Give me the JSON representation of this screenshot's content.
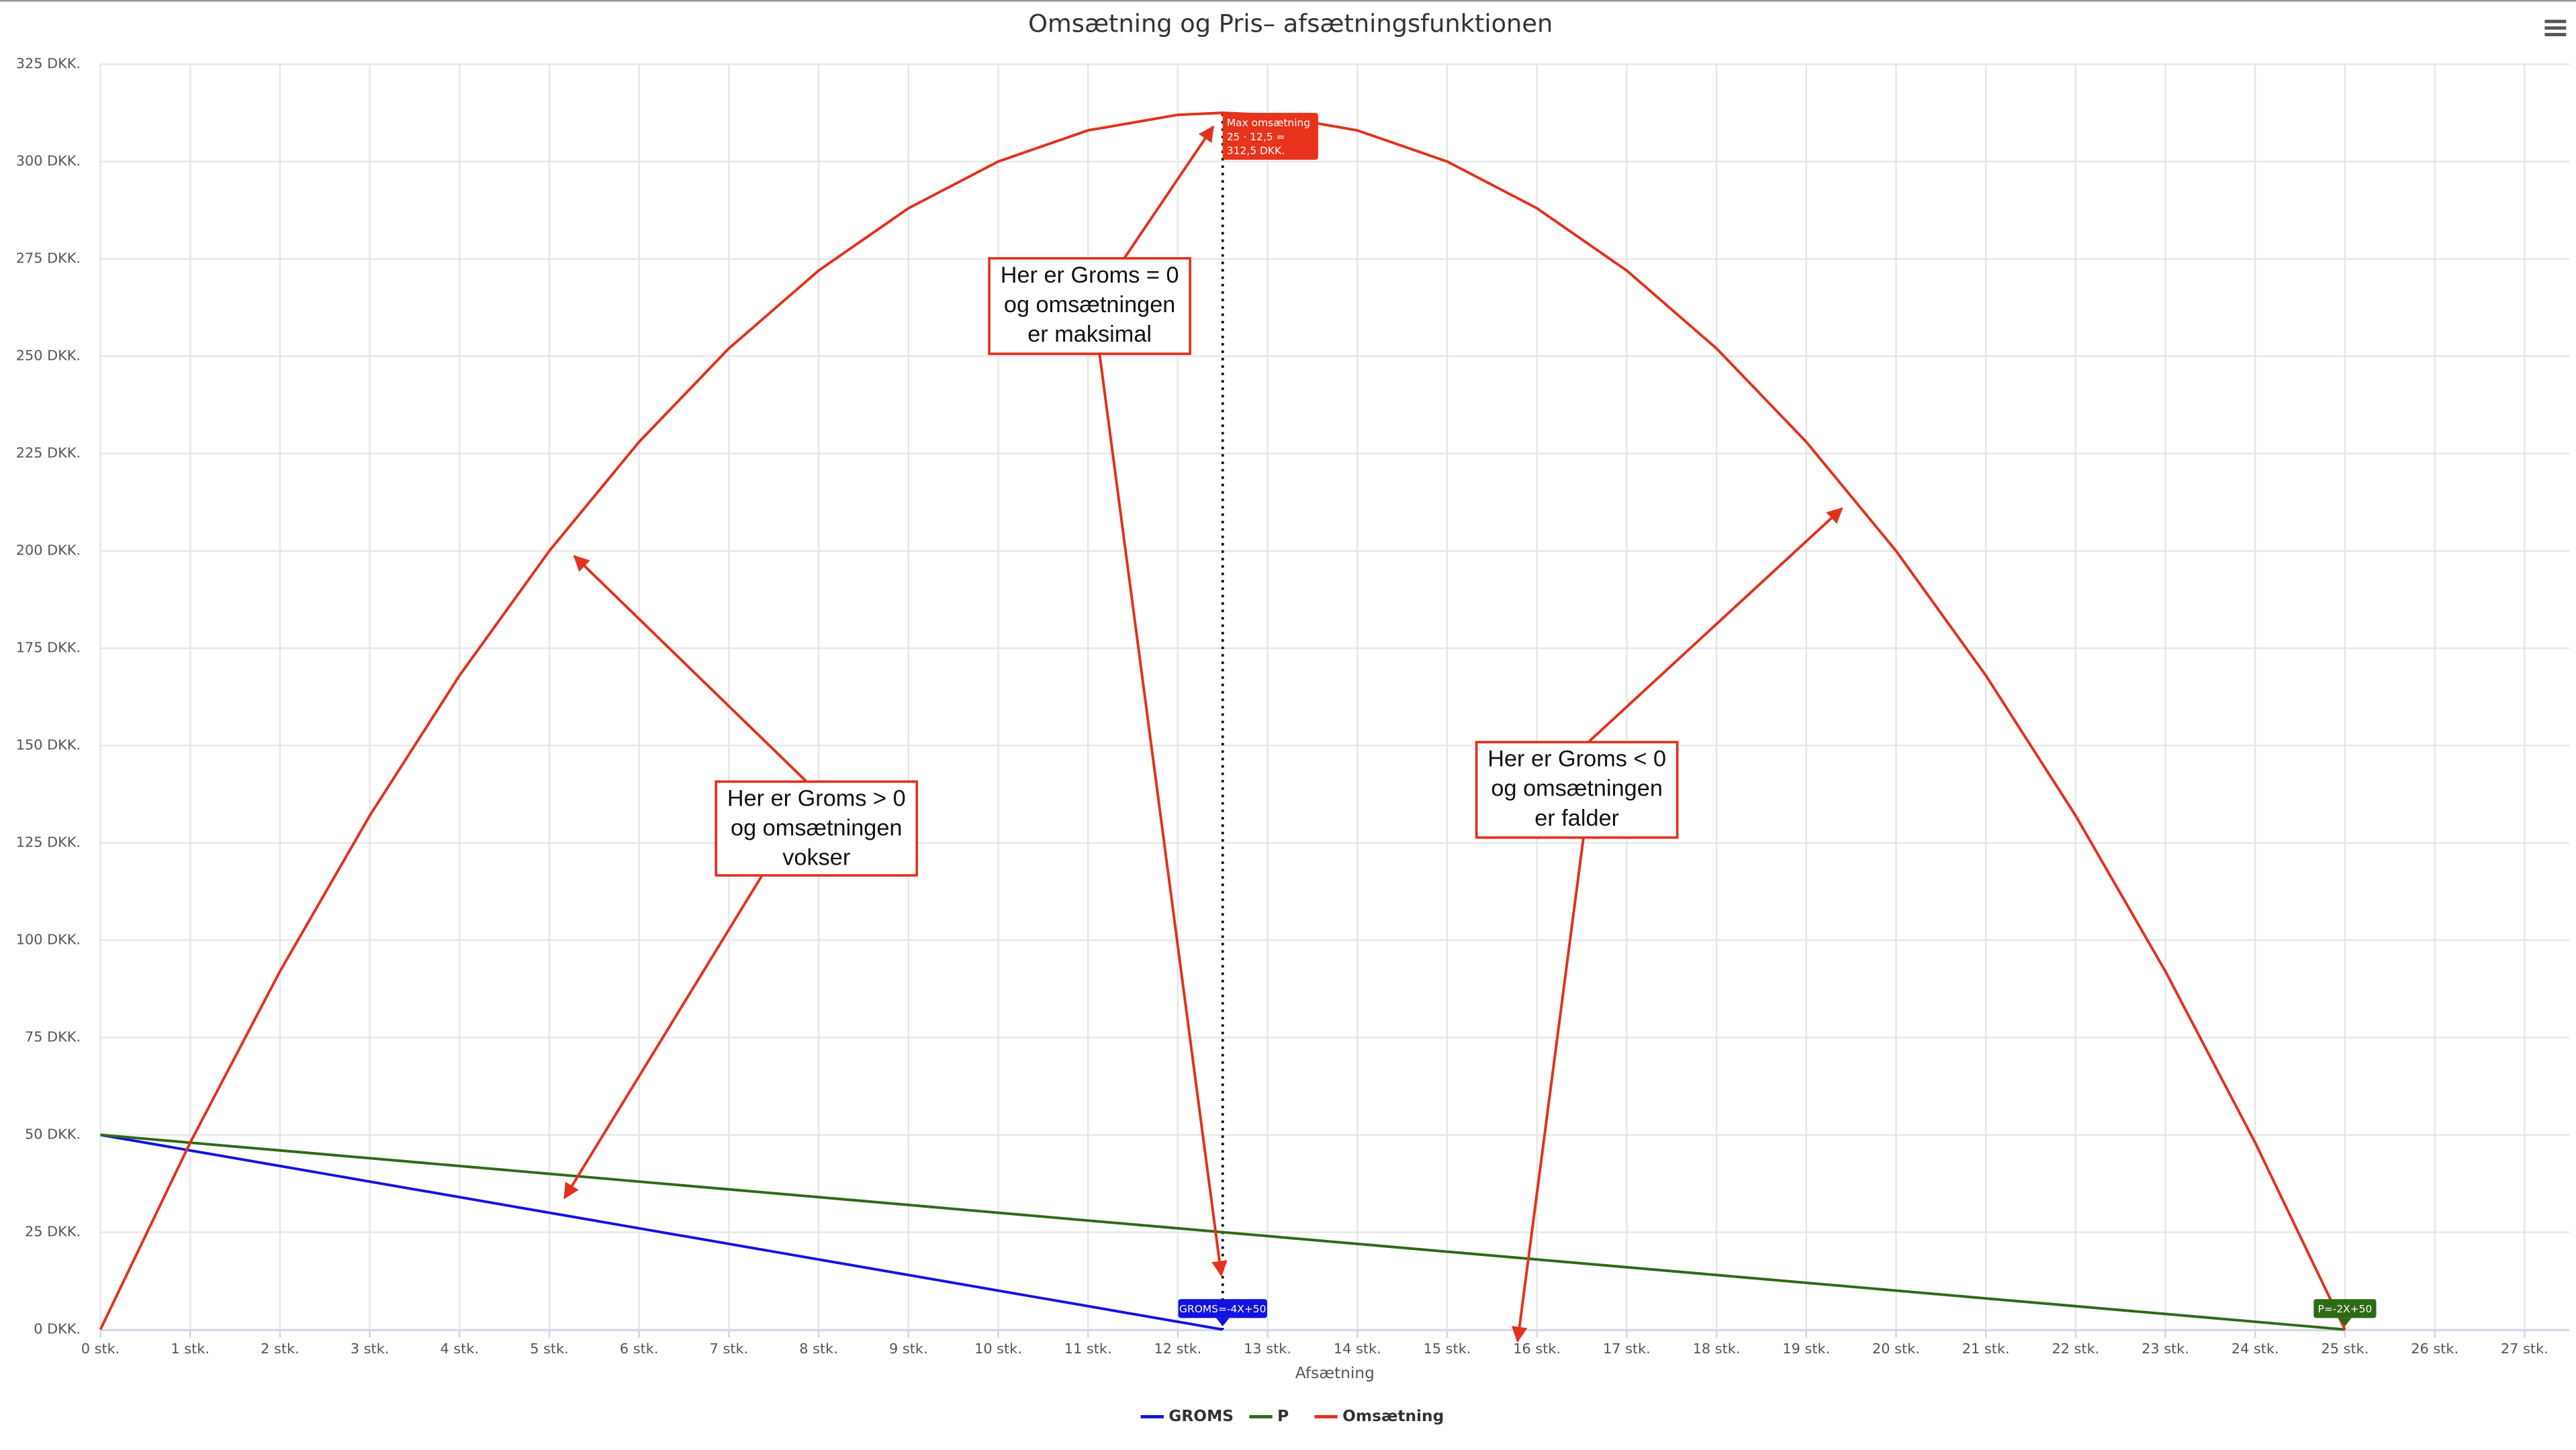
{
  "chart_data": {
    "type": "line",
    "title": "Omsætning og Pris– afsætningsfunktionen",
    "x_label": "Afsætning",
    "x": [
      0,
      1,
      2,
      3,
      4,
      5,
      6,
      7,
      8,
      9,
      10,
      11,
      12,
      12.5,
      13,
      14,
      15,
      16,
      17,
      18,
      19,
      20,
      21,
      22,
      23,
      24,
      25
    ],
    "series": [
      {
        "name": "GROMS",
        "color": "#1212e0",
        "values": [
          50,
          46,
          42,
          38,
          34,
          30,
          26,
          22,
          18,
          14,
          10,
          6,
          2,
          0,
          null,
          null,
          null,
          null,
          null,
          null,
          null,
          null,
          null,
          null,
          null,
          null,
          null
        ]
      },
      {
        "name": "P",
        "color": "#2d6a16",
        "values": [
          50,
          48,
          46,
          44,
          42,
          40,
          38,
          36,
          34,
          32,
          30,
          28,
          26,
          25,
          24,
          22,
          20,
          18,
          16,
          14,
          12,
          10,
          8,
          6,
          4,
          2,
          0
        ]
      },
      {
        "name": "Omsætning",
        "color": "#e2311d",
        "values": [
          0,
          48,
          92,
          132,
          168,
          200,
          228,
          252,
          272,
          288,
          300,
          308,
          312,
          312.5,
          312,
          308,
          300,
          288,
          272,
          252,
          228,
          200,
          168,
          132,
          92,
          48,
          0
        ]
      }
    ],
    "xlim": [
      0,
      27.5
    ],
    "ylim": [
      0,
      325
    ],
    "xticks": [
      {
        "value": 0,
        "label": "0 stk."
      },
      {
        "value": 1,
        "label": "1 stk."
      },
      {
        "value": 2,
        "label": "2 stk."
      },
      {
        "value": 3,
        "label": "3 stk."
      },
      {
        "value": 4,
        "label": "4 stk."
      },
      {
        "value": 5,
        "label": "5 stk."
      },
      {
        "value": 6,
        "label": "6 stk."
      },
      {
        "value": 7,
        "label": "7 stk."
      },
      {
        "value": 8,
        "label": "8 stk."
      },
      {
        "value": 9,
        "label": "9 stk."
      },
      {
        "value": 10,
        "label": "10 stk."
      },
      {
        "value": 11,
        "label": "11 stk."
      },
      {
        "value": 12,
        "label": "12 stk."
      },
      {
        "value": 13,
        "label": "13 stk."
      },
      {
        "value": 14,
        "label": "14 stk."
      },
      {
        "value": 15,
        "label": "15 stk."
      },
      {
        "value": 16,
        "label": "16 stk."
      },
      {
        "value": 17,
        "label": "17 stk."
      },
      {
        "value": 18,
        "label": "18 stk."
      },
      {
        "value": 19,
        "label": "19 stk."
      },
      {
        "value": 20,
        "label": "20 stk."
      },
      {
        "value": 21,
        "label": "21 stk."
      },
      {
        "value": 22,
        "label": "22 stk."
      },
      {
        "value": 23,
        "label": "23 stk."
      },
      {
        "value": 24,
        "label": "24 stk."
      },
      {
        "value": 25,
        "label": "25 stk."
      },
      {
        "value": 26,
        "label": "26 stk."
      },
      {
        "value": 27,
        "label": "27 stk."
      }
    ],
    "yticks": [
      {
        "value": 0,
        "label": "0 DKK."
      },
      {
        "value": 25,
        "label": "25 DKK."
      },
      {
        "value": 50,
        "label": "50 DKK."
      },
      {
        "value": 75,
        "label": "75 DKK."
      },
      {
        "value": 100,
        "label": "100 DKK."
      },
      {
        "value": 125,
        "label": "125 DKK."
      },
      {
        "value": 150,
        "label": "150 DKK."
      },
      {
        "value": 175,
        "label": "175 DKK."
      },
      {
        "value": 200,
        "label": "200 DKK."
      },
      {
        "value": 225,
        "label": "225 DKK."
      },
      {
        "value": 250,
        "label": "250 DKK."
      },
      {
        "value": 275,
        "label": "275 DKK."
      },
      {
        "value": 300,
        "label": "300 DKK."
      },
      {
        "value": 325,
        "label": "325 DKK."
      }
    ],
    "grid": true,
    "legend": "bottom",
    "plot_lines": [
      {
        "value": 12.5
      }
    ],
    "flags": [
      {
        "lines": [
          "Max omsætning",
          "25 · 12,5 =",
          "312,5 DKK."
        ],
        "x": 12.5,
        "y": 312.5,
        "color": "#e8331d"
      },
      {
        "lines": [
          "GROMS=-4X+50"
        ],
        "x": 12.5,
        "y": 0,
        "color": "#1212e0"
      },
      {
        "lines": [
          "P=-2X+50"
        ],
        "x": 25,
        "y": 0,
        "color": "#2d6a16"
      }
    ],
    "annotations": [
      {
        "lines": [
          "Her er Groms = 0",
          "og omsætningen",
          "er maksimal"
        ]
      },
      {
        "lines": [
          "Her er Groms > 0",
          "og omsætningen",
          "vokser"
        ]
      },
      {
        "lines": [
          "Her er Groms < 0",
          "og omsætningen",
          "er falder"
        ]
      }
    ]
  }
}
